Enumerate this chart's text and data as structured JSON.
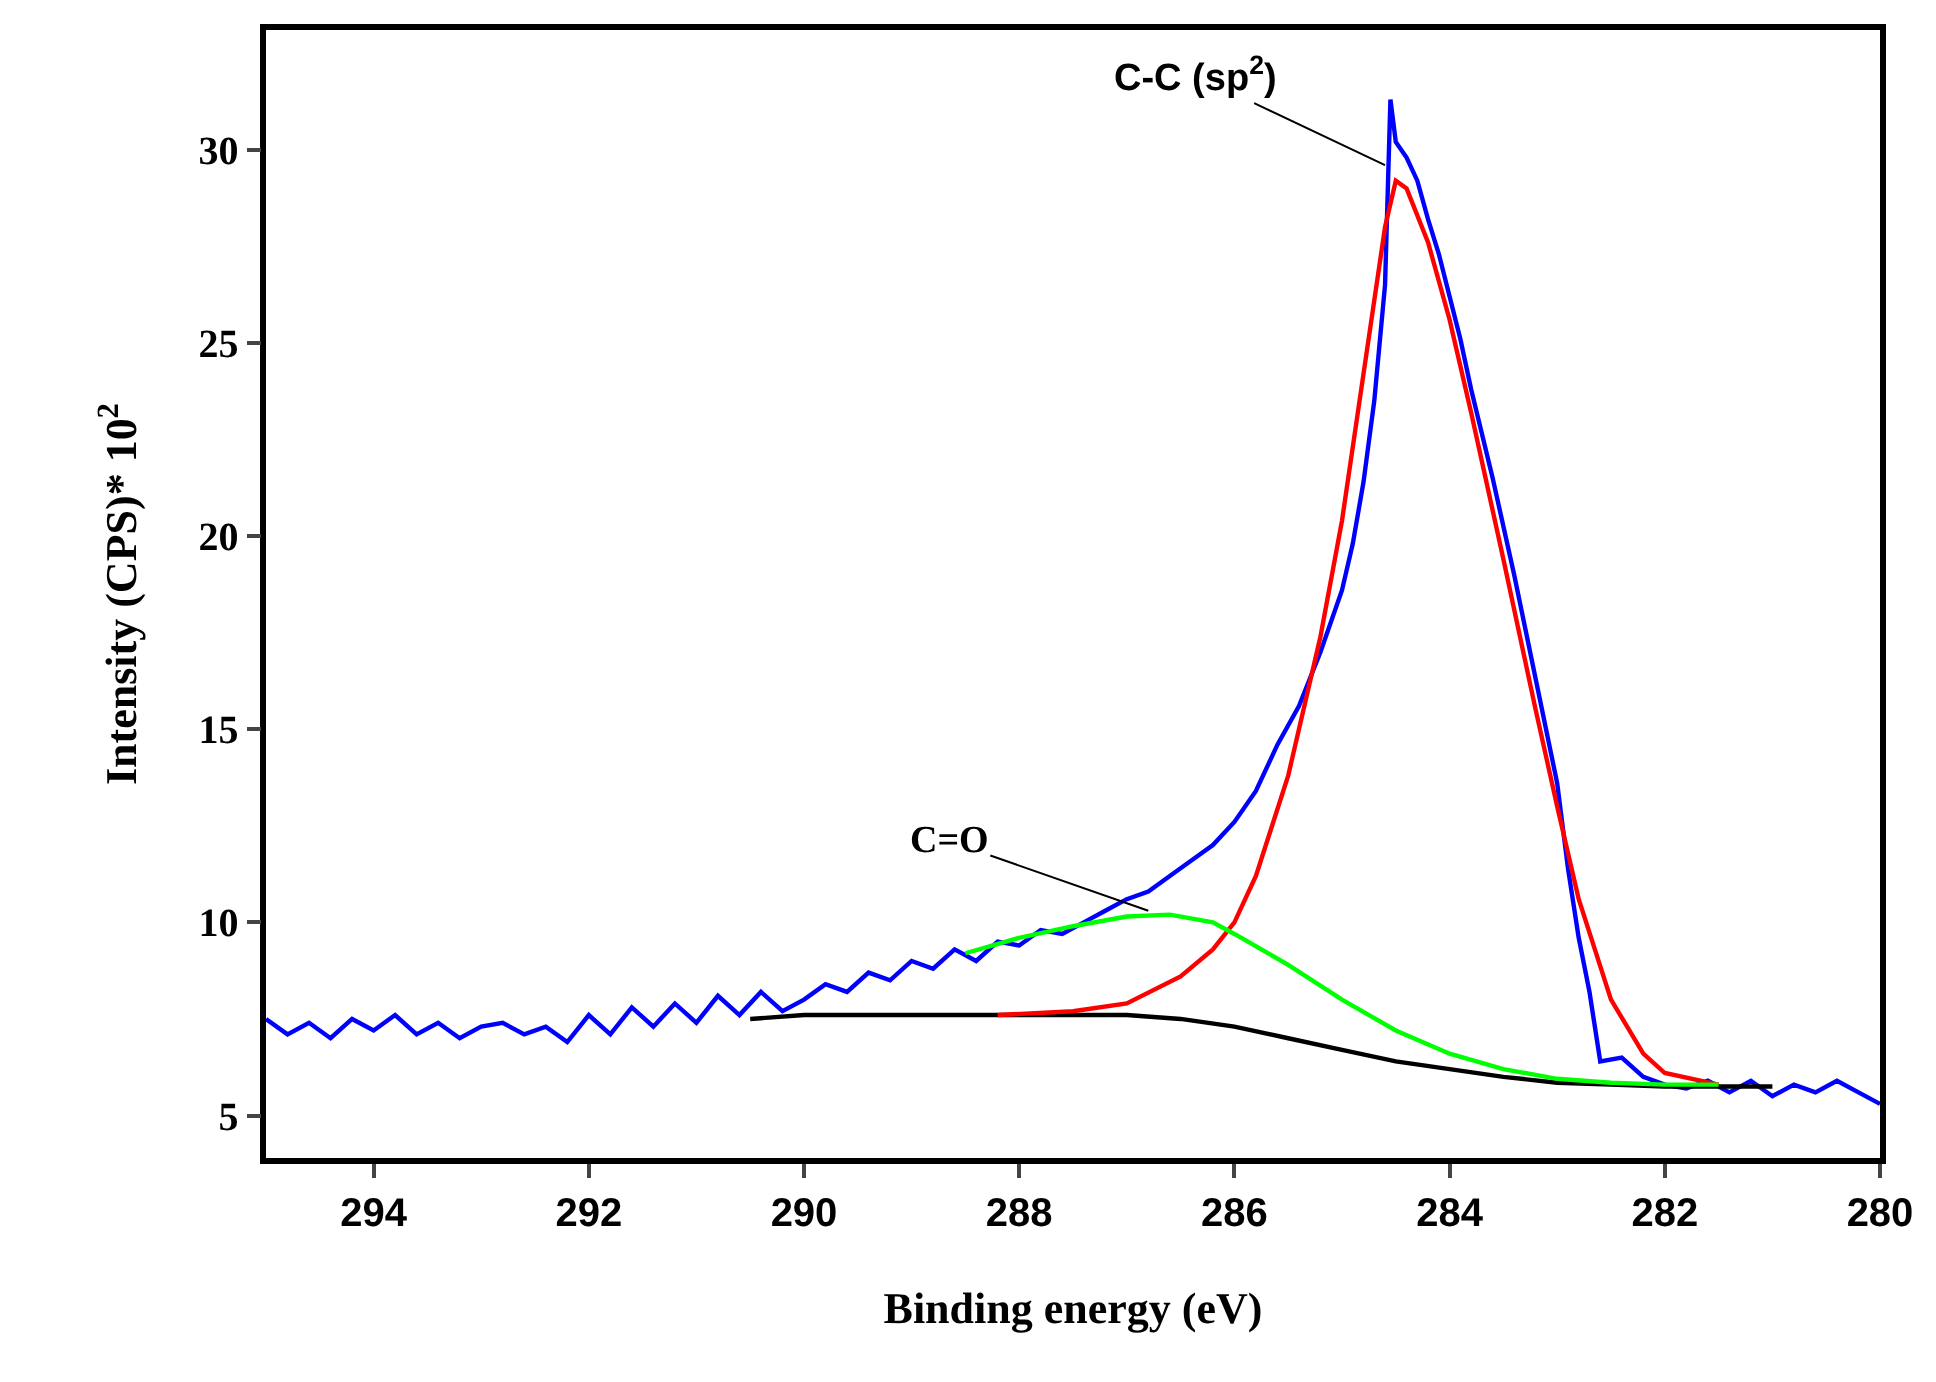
{
  "chart_data": {
    "type": "line",
    "xlabel": "Binding energy (eV)",
    "ylabel": "Intensity (CPS)* 10$^{2}$",
    "xlim": [
      295,
      280
    ],
    "ylim": [
      3.9,
      33.1
    ],
    "xticks": [
      294,
      292,
      290,
      288,
      286,
      284,
      282,
      280
    ],
    "yticks": [
      5,
      10,
      15,
      20,
      25,
      30
    ],
    "grid": false,
    "marker": "none",
    "line_style": "solid",
    "series": [
      {
        "color": "#0000ff",
        "x": [
          295,
          294.8,
          294.6,
          294.4,
          294.2,
          294,
          293.8,
          293.6,
          293.4,
          293.2,
          293,
          292.8,
          292.6,
          292.4,
          292.2,
          292,
          291.8,
          291.6,
          291.4,
          291.2,
          291,
          290.8,
          290.6,
          290.4,
          290.2,
          290,
          289.8,
          289.6,
          289.4,
          289.2,
          289,
          288.8,
          288.6,
          288.4,
          288.2,
          288,
          287.8,
          287.6,
          287.4,
          287.2,
          287,
          286.8,
          286.6,
          286.4,
          286.2,
          286,
          285.8,
          285.6,
          285.4,
          285.2,
          285,
          284.9,
          284.8,
          284.7,
          284.6,
          284.55,
          284.5,
          284.4,
          284.3,
          284.2,
          284.1,
          284,
          283.9,
          283.8,
          283.6,
          283.4,
          283.2,
          283,
          282.9,
          282.8,
          282.7,
          282.6,
          282.4,
          282.2,
          282,
          281.8,
          281.6,
          281.4,
          281.2,
          281,
          280.8,
          280.6,
          280.4,
          280.2,
          280
        ],
        "values": [
          7.5,
          7.1,
          7.4,
          7.0,
          7.5,
          7.2,
          7.6,
          7.1,
          7.4,
          7.0,
          7.3,
          7.4,
          7.1,
          7.3,
          6.9,
          7.6,
          7.1,
          7.8,
          7.3,
          7.9,
          7.4,
          8.1,
          7.6,
          8.2,
          7.7,
          8.0,
          8.4,
          8.2,
          8.7,
          8.5,
          9.0,
          8.8,
          9.3,
          9.0,
          9.5,
          9.4,
          9.8,
          9.7,
          10.0,
          10.3,
          10.6,
          10.8,
          11.2,
          11.6,
          12.0,
          12.6,
          13.4,
          14.6,
          15.6,
          17.0,
          18.6,
          19.8,
          21.4,
          23.5,
          26.5,
          31.3,
          30.2,
          29.8,
          29.2,
          28.2,
          27.3,
          26.2,
          25.1,
          23.8,
          21.5,
          19.0,
          16.3,
          13.6,
          11.4,
          9.6,
          8.2,
          6.4,
          6.5,
          6.0,
          5.8,
          5.7,
          5.9,
          5.6,
          5.9,
          5.5,
          5.8,
          5.6,
          5.9,
          5.6,
          5.3
        ]
      },
      {
        "color": "#000000",
        "x": [
          290.5,
          290,
          289,
          288,
          287,
          286.5,
          286,
          285.5,
          285,
          284.5,
          284,
          283.5,
          283,
          282.5,
          282,
          281.5,
          281
        ],
        "values": [
          7.5,
          7.6,
          7.6,
          7.6,
          7.6,
          7.5,
          7.3,
          7.0,
          6.7,
          6.4,
          6.2,
          6.0,
          5.85,
          5.8,
          5.75,
          5.75,
          5.75
        ]
      },
      {
        "color": "#ff0000",
        "x": [
          288.2,
          287.5,
          287,
          286.5,
          286.2,
          286,
          285.8,
          285.5,
          285.2,
          285,
          284.8,
          284.6,
          284.5,
          284.4,
          284.2,
          284,
          283.8,
          283.5,
          283.2,
          283,
          282.8,
          282.5,
          282.2,
          282,
          281.5
        ],
        "values": [
          7.6,
          7.7,
          7.9,
          8.6,
          9.3,
          10.0,
          11.2,
          13.8,
          17.4,
          20.4,
          24.2,
          28.0,
          29.2,
          29.0,
          27.6,
          25.6,
          23.2,
          19.4,
          15.5,
          13.0,
          10.6,
          8.0,
          6.6,
          6.1,
          5.8
        ]
      },
      {
        "color": "#00ff00",
        "x": [
          288.5,
          288,
          287.5,
          287,
          286.6,
          286.2,
          286,
          285.5,
          285,
          284.5,
          284,
          283.5,
          283,
          282.5,
          282,
          281.5
        ],
        "values": [
          9.2,
          9.6,
          9.9,
          10.15,
          10.2,
          10.0,
          9.7,
          8.9,
          8.0,
          7.2,
          6.6,
          6.2,
          5.95,
          5.85,
          5.8,
          5.8
        ]
      }
    ],
    "annotations": [
      {
        "text": "C-C (sp$^{2}$)",
        "x": 284.6,
        "y": 29.6
      },
      {
        "text": "C=O",
        "x": 286.8,
        "y": 10.3
      }
    ]
  }
}
